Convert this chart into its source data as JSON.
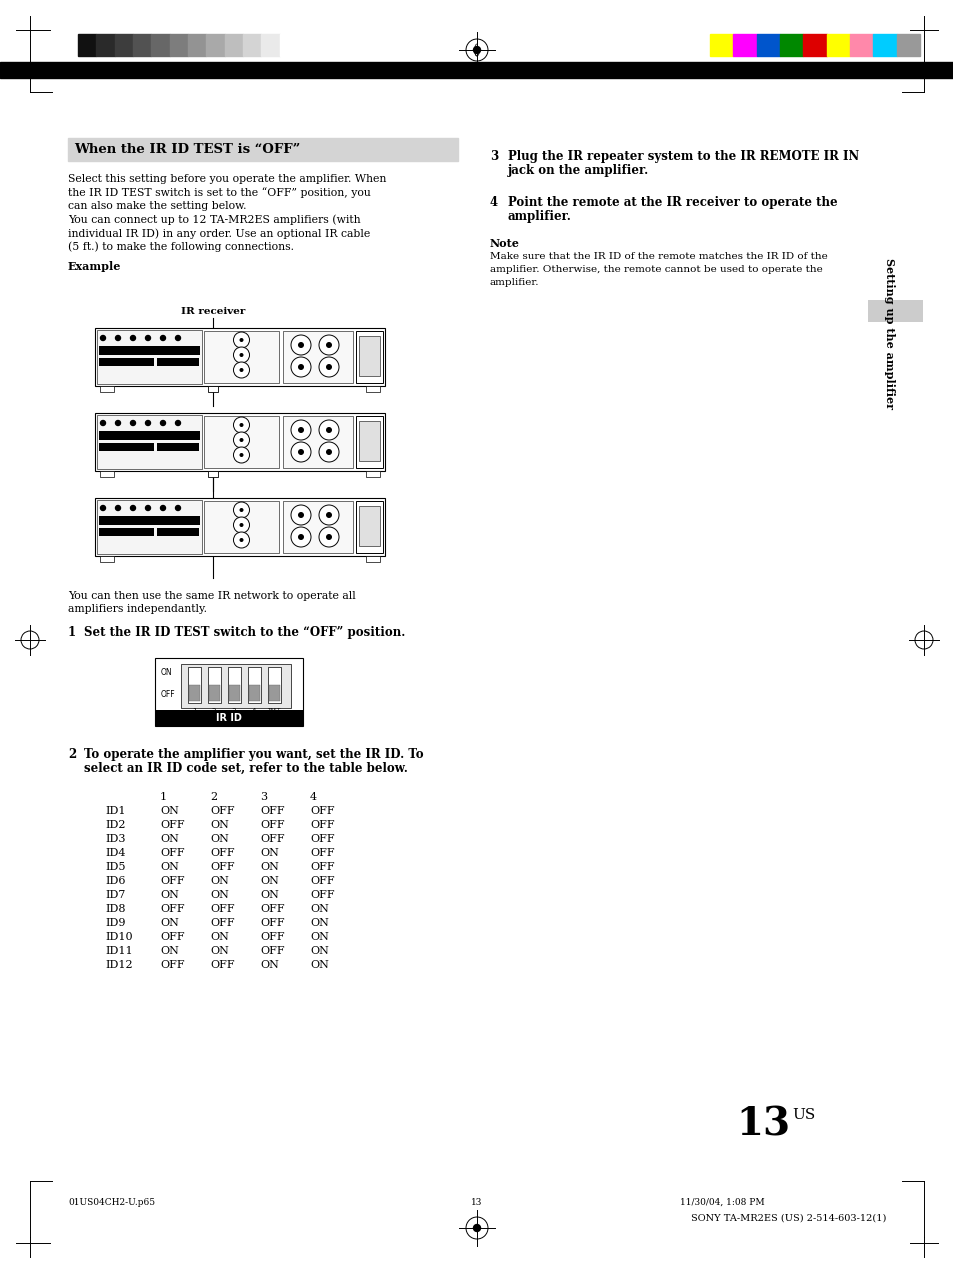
{
  "page_bg": "#ffffff",
  "header_bar_colors_left": [
    "#111111",
    "#2a2a2a",
    "#3d3d3d",
    "#525252",
    "#676767",
    "#7d7d7d",
    "#939393",
    "#a9a9a9",
    "#bebebe",
    "#d4d4d4",
    "#eaeaea",
    "#ffffff"
  ],
  "header_bar_colors_right": [
    "#ffff00",
    "#ff00ff",
    "#0055cc",
    "#008800",
    "#dd0000",
    "#ffff00",
    "#ff88aa",
    "#00ccff",
    "#999999"
  ],
  "section_title": "When the IR ID TEST is “OFF”",
  "section_bg": "#d4d4d4",
  "body_text_left": [
    "Select this setting before you operate the amplifier. When",
    "the IR ID TEST switch is set to the “OFF” position, you",
    "can also make the setting below.",
    "You can connect up to 12 TA-MR2ES amplifiers (with",
    "individual IR ID) in any order. Use an optional IR cable",
    "(5 ft.) to make the following connections."
  ],
  "example_label": "Example",
  "ir_receiver_label": "IR receiver",
  "step1_text": "Set the IR ID TEST switch to the “OFF” position.",
  "step2_text": "To operate the amplifier you want, set the IR ID. To\nselect an IR ID code set, refer to the table below.",
  "step3_text": "Plug the IR repeater system to the IR REMOTE IR IN\njack on the amplifier.",
  "step4_text": "Point the remote at the IR receiver to operate the\namplifier.",
  "note_title": "Note",
  "note_text": "Make sure that the IR ID of the remote matches the IR ID of the\namplifier. Otherwise, the remote cannot be used to operate the\namplifier.",
  "table_headers": [
    "",
    "1",
    "2",
    "3",
    "4"
  ],
  "table_rows": [
    [
      "ID1",
      "ON",
      "OFF",
      "OFF",
      "OFF"
    ],
    [
      "ID2",
      "OFF",
      "ON",
      "OFF",
      "OFF"
    ],
    [
      "ID3",
      "ON",
      "ON",
      "OFF",
      "OFF"
    ],
    [
      "ID4",
      "OFF",
      "OFF",
      "ON",
      "OFF"
    ],
    [
      "ID5",
      "ON",
      "OFF",
      "ON",
      "OFF"
    ],
    [
      "ID6",
      "OFF",
      "ON",
      "ON",
      "OFF"
    ],
    [
      "ID7",
      "ON",
      "ON",
      "ON",
      "OFF"
    ],
    [
      "ID8",
      "OFF",
      "OFF",
      "OFF",
      "ON"
    ],
    [
      "ID9",
      "ON",
      "OFF",
      "OFF",
      "ON"
    ],
    [
      "ID10",
      "OFF",
      "ON",
      "OFF",
      "ON"
    ],
    [
      "ID11",
      "ON",
      "ON",
      "OFF",
      "ON"
    ],
    [
      "ID12",
      "OFF",
      "OFF",
      "ON",
      "ON"
    ]
  ],
  "sidebar_text": "Setting up the amplifier",
  "sidebar_box_color": "#cccccc",
  "page_number": "13",
  "page_number_super": "US",
  "footer_left": "01US04CH2-U.p65",
  "footer_center_page": "13",
  "footer_right_date": "11/30/04, 1:08 PM",
  "footer_brand": "SONY TA-MR2ES (US) 2-514-603-12(1)"
}
